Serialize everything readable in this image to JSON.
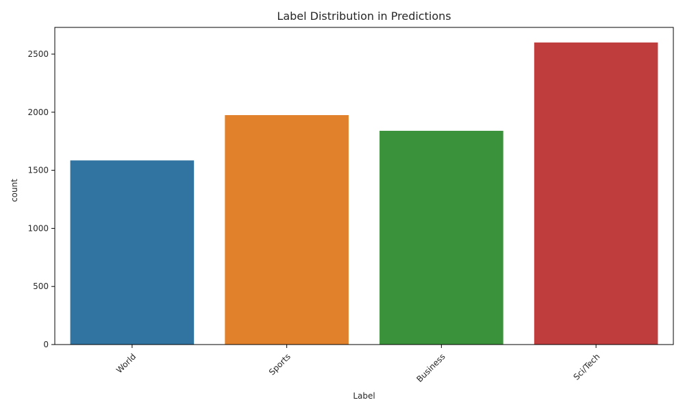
{
  "chart_data": {
    "type": "bar",
    "title": "Label Distribution in Predictions",
    "xlabel": "Label",
    "ylabel": "count",
    "categories": [
      "World",
      "Sports",
      "Business",
      "Sci/Tech"
    ],
    "values": [
      1585,
      1975,
      1840,
      2600
    ],
    "colors": [
      "#3274a1",
      "#e1812c",
      "#3a923a",
      "#c03d3e"
    ],
    "ylim": [
      0,
      2730
    ],
    "yticks": [
      0,
      500,
      1000,
      1500,
      2000,
      2500
    ],
    "ytick_labels": [
      "0",
      "500",
      "1000",
      "1500",
      "2000",
      "2500"
    ],
    "xtick_rotation": 45,
    "grid": false
  }
}
